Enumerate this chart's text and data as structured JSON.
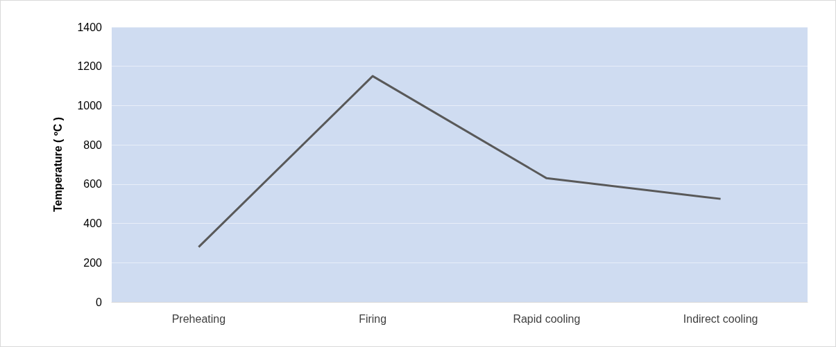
{
  "chart_data": {
    "type": "line",
    "ylabel": "Temperature ( ºC )",
    "categories": [
      "Preheating",
      "Firing",
      "Rapid cooling",
      "Indirect cooling"
    ],
    "series": [
      {
        "color": "#595959",
        "values": [
          280,
          1150,
          630,
          525
        ]
      }
    ],
    "ylim": [
      0,
      1400
    ],
    "yticks": [
      0,
      200,
      400,
      600,
      800,
      1000,
      1200,
      1400
    ],
    "grid": "y",
    "marker": "none",
    "line_style": "solid"
  }
}
